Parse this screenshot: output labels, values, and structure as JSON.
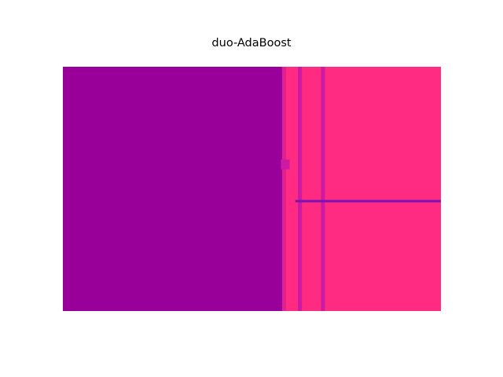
{
  "chart_data": {
    "type": "heatmap",
    "title": "duo-AdaBoost",
    "xlabel": "",
    "ylabel": "",
    "axes_visible": false,
    "grid": false,
    "legend": "none",
    "classes": [
      {
        "id": 0,
        "color": "#990099"
      },
      {
        "id": 1,
        "color": "#ff2a82"
      },
      {
        "id": "boundary",
        "color": "#cc1aa3"
      }
    ],
    "decision_regions": [
      {
        "region": "left",
        "x_range": [
          0.0,
          0.585
        ],
        "y_range": [
          0.0,
          1.0
        ],
        "class": 0
      },
      {
        "region": "right",
        "x_range": [
          0.585,
          1.0
        ],
        "y_range": [
          0.0,
          1.0
        ],
        "class": 1
      }
    ],
    "vertical_boundaries": [
      {
        "x": 0.585,
        "y_range": [
          0.0,
          1.0
        ],
        "color": "#e0208f"
      },
      {
        "x": 0.627,
        "y_range": [
          0.0,
          1.0
        ],
        "color": "#cc1aa3"
      },
      {
        "x": 0.688,
        "y_range": [
          0.0,
          1.0
        ],
        "color": "#cc1aa3"
      }
    ],
    "horizontal_boundaries": [
      {
        "y": 0.45,
        "x_range": [
          0.615,
          1.0
        ],
        "color": "#7a12b0"
      }
    ],
    "notch": {
      "x_range": [
        0.585,
        0.6
      ],
      "y_range": [
        0.58,
        0.62
      ],
      "color": "#cc1aa3"
    }
  }
}
